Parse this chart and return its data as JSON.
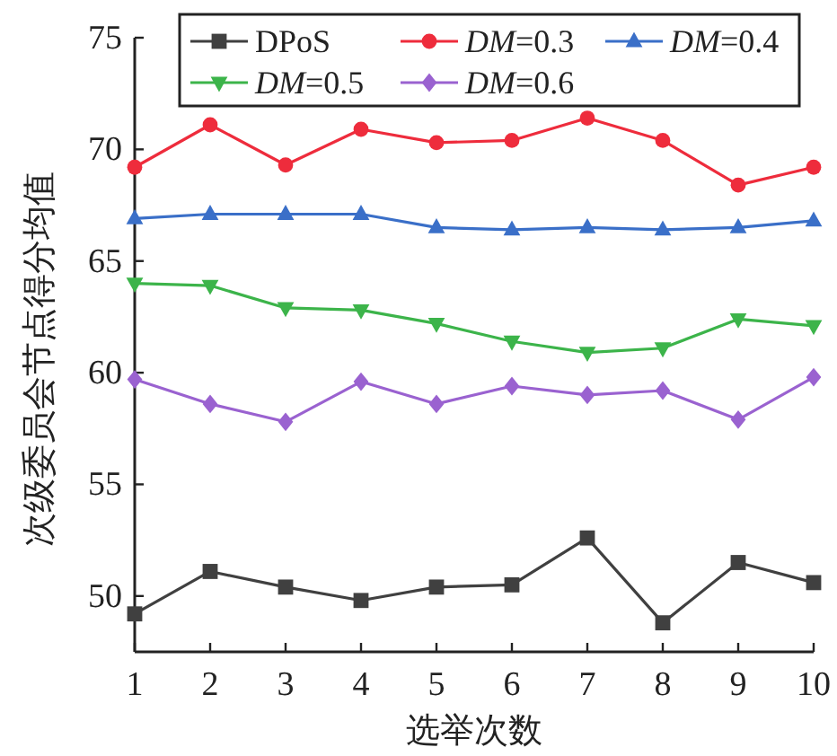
{
  "chart_data": {
    "type": "line",
    "xlabel": "选举次数",
    "ylabel": "次级委员会节点得分均值",
    "x": [
      1,
      2,
      3,
      4,
      5,
      6,
      7,
      8,
      9,
      10
    ],
    "xlim": [
      1,
      10
    ],
    "xticks": [
      1,
      2,
      3,
      4,
      5,
      6,
      7,
      8,
      9,
      10
    ],
    "ylim": [
      47.5,
      75
    ],
    "yticks": [
      50,
      55,
      60,
      65,
      70,
      75
    ],
    "grid": false,
    "legend": "top",
    "line_style": "solid",
    "series": [
      {
        "name": "DPoS",
        "color": "#404040",
        "marker": "square",
        "values": [
          49.2,
          51.1,
          50.4,
          49.8,
          50.4,
          50.5,
          52.6,
          48.8,
          51.5,
          50.6
        ]
      },
      {
        "name": "*DM*=0.3",
        "color": "#ee2c3c",
        "marker": "circle",
        "values": [
          69.2,
          71.1,
          69.3,
          70.9,
          70.3,
          70.4,
          71.4,
          70.4,
          68.4,
          69.2
        ]
      },
      {
        "name": "*DM*=0.4",
        "color": "#3a6fc8",
        "marker": "triangle",
        "values": [
          66.9,
          67.1,
          67.1,
          67.1,
          66.5,
          66.4,
          66.5,
          66.4,
          66.5,
          66.8
        ]
      },
      {
        "name": "*DM*=0.5",
        "color": "#3cb44a",
        "marker": "triangle-down",
        "values": [
          64.0,
          63.9,
          62.9,
          62.8,
          62.2,
          61.4,
          60.9,
          61.1,
          62.4,
          62.1
        ]
      },
      {
        "name": "*DM*=0.6",
        "color": "#9a62d0",
        "marker": "diamond",
        "values": [
          59.7,
          58.6,
          57.8,
          59.6,
          58.6,
          59.4,
          59.0,
          59.2,
          57.9,
          59.8
        ]
      }
    ]
  }
}
